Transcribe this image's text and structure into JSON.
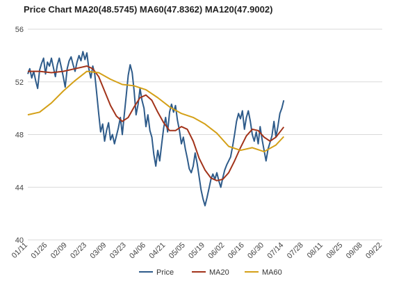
{
  "chart_data": {
    "type": "line",
    "title": "Price Chart MA20(48.5745) MA60(47.8362) MA120(47.9002)",
    "xlabel": "",
    "ylabel": "",
    "ylim": [
      40,
      56
    ],
    "yticks": [
      40,
      44,
      48,
      52,
      56
    ],
    "grid": true,
    "legend_position": "bottom",
    "x_labels": [
      "01/11",
      "01/26",
      "02/09",
      "02/23",
      "03/09",
      "03/23",
      "04/06",
      "04/21",
      "05/05",
      "05/19",
      "06/02",
      "06/16",
      "06/30",
      "07/14",
      "07/28",
      "08/11",
      "08/25",
      "09/08",
      "09/22"
    ],
    "series": [
      {
        "name": "Price",
        "color": "#2e5b8a",
        "points": [
          [
            0,
            52.6
          ],
          [
            0.1,
            53
          ],
          [
            0.2,
            52.3
          ],
          [
            0.3,
            52.8
          ],
          [
            0.4,
            52.1
          ],
          [
            0.5,
            51.5
          ],
          [
            0.6,
            52.9
          ],
          [
            0.7,
            53.4
          ],
          [
            0.8,
            53.8
          ],
          [
            0.9,
            52.6
          ],
          [
            1.0,
            53.5
          ],
          [
            1.1,
            53.2
          ],
          [
            1.2,
            53.8
          ],
          [
            1.3,
            53.1
          ],
          [
            1.4,
            52.4
          ],
          [
            1.5,
            53.3
          ],
          [
            1.6,
            53.8
          ],
          [
            1.7,
            53.1
          ],
          [
            1.8,
            52.4
          ],
          [
            1.9,
            51.6
          ],
          [
            2.0,
            53.0
          ],
          [
            2.1,
            53.6
          ],
          [
            2.2,
            53.9
          ],
          [
            2.3,
            53.3
          ],
          [
            2.4,
            52.8
          ],
          [
            2.5,
            53.5
          ],
          [
            2.6,
            54.0
          ],
          [
            2.7,
            53.6
          ],
          [
            2.8,
            54.3
          ],
          [
            2.9,
            53.7
          ],
          [
            3.0,
            54.2
          ],
          [
            3.1,
            53.0
          ],
          [
            3.2,
            52.3
          ],
          [
            3.3,
            53.2
          ],
          [
            3.4,
            52.6
          ],
          [
            3.5,
            51.1
          ],
          [
            3.6,
            49.6
          ],
          [
            3.7,
            48.2
          ],
          [
            3.8,
            48.8
          ],
          [
            3.9,
            47.5
          ],
          [
            4.0,
            48.3
          ],
          [
            4.1,
            48.9
          ],
          [
            4.2,
            47.6
          ],
          [
            4.3,
            48.0
          ],
          [
            4.4,
            47.3
          ],
          [
            4.5,
            47.9
          ],
          [
            4.6,
            48.5
          ],
          [
            4.7,
            49.3
          ],
          [
            4.8,
            48.0
          ],
          [
            4.9,
            49.5
          ],
          [
            5.0,
            51.0
          ],
          [
            5.1,
            52.5
          ],
          [
            5.2,
            53.3
          ],
          [
            5.3,
            52.7
          ],
          [
            5.4,
            51.3
          ],
          [
            5.5,
            49.5
          ],
          [
            5.6,
            50.3
          ],
          [
            5.7,
            51.5
          ],
          [
            5.8,
            50.6
          ],
          [
            5.9,
            50.0
          ],
          [
            6.0,
            48.6
          ],
          [
            6.1,
            49.5
          ],
          [
            6.2,
            48.3
          ],
          [
            6.3,
            47.8
          ],
          [
            6.4,
            46.5
          ],
          [
            6.5,
            45.6
          ],
          [
            6.6,
            46.8
          ],
          [
            6.7,
            46.0
          ],
          [
            6.8,
            47.3
          ],
          [
            6.9,
            48.5
          ],
          [
            7.0,
            49.3
          ],
          [
            7.1,
            48.2
          ],
          [
            7.2,
            49.7
          ],
          [
            7.3,
            50.3
          ],
          [
            7.4,
            49.7
          ],
          [
            7.5,
            50.2
          ],
          [
            7.6,
            49.1
          ],
          [
            7.7,
            48.3
          ],
          [
            7.8,
            47.3
          ],
          [
            7.9,
            47.8
          ],
          [
            8.0,
            46.9
          ],
          [
            8.1,
            46.2
          ],
          [
            8.2,
            45.4
          ],
          [
            8.3,
            45.1
          ],
          [
            8.4,
            45.6
          ],
          [
            8.5,
            46.6
          ],
          [
            8.6,
            45.8
          ],
          [
            8.7,
            44.8
          ],
          [
            8.8,
            43.8
          ],
          [
            8.9,
            43.1
          ],
          [
            9.0,
            42.6
          ],
          [
            9.1,
            43.2
          ],
          [
            9.2,
            43.9
          ],
          [
            9.3,
            44.6
          ],
          [
            9.4,
            45.0
          ],
          [
            9.5,
            44.6
          ],
          [
            9.6,
            45.1
          ],
          [
            9.7,
            44.5
          ],
          [
            9.8,
            44.0
          ],
          [
            9.9,
            44.7
          ],
          [
            10.0,
            45.3
          ],
          [
            10.1,
            45.7
          ],
          [
            10.2,
            46.0
          ],
          [
            10.3,
            46.3
          ],
          [
            10.4,
            47.1
          ],
          [
            10.5,
            48.0
          ],
          [
            10.6,
            49.0
          ],
          [
            10.7,
            49.6
          ],
          [
            10.8,
            49.2
          ],
          [
            10.9,
            49.8
          ],
          [
            11.0,
            48.4
          ],
          [
            11.1,
            49.3
          ],
          [
            11.2,
            49.8
          ],
          [
            11.3,
            49.0
          ],
          [
            11.4,
            48.0
          ],
          [
            11.5,
            47.5
          ],
          [
            11.6,
            48.2
          ],
          [
            11.7,
            47.3
          ],
          [
            11.8,
            48.6
          ],
          [
            11.9,
            47.6
          ],
          [
            12.0,
            46.8
          ],
          [
            12.1,
            46.0
          ],
          [
            12.2,
            46.9
          ],
          [
            12.3,
            47.4
          ],
          [
            12.4,
            47.9
          ],
          [
            12.5,
            49.0
          ],
          [
            12.6,
            47.8
          ],
          [
            12.7,
            48.6
          ],
          [
            12.8,
            49.6
          ],
          [
            12.9,
            50.0
          ],
          [
            13.0,
            50.6
          ]
        ]
      },
      {
        "name": "MA20",
        "color": "#a2331a",
        "points": [
          [
            0,
            52.8
          ],
          [
            0.6,
            52.8
          ],
          [
            1.2,
            52.7
          ],
          [
            1.8,
            52.8
          ],
          [
            2.4,
            53.0
          ],
          [
            3.0,
            53.2
          ],
          [
            3.3,
            53.0
          ],
          [
            3.6,
            52.4
          ],
          [
            3.9,
            51.3
          ],
          [
            4.2,
            50.2
          ],
          [
            4.5,
            49.4
          ],
          [
            4.8,
            49.0
          ],
          [
            5.1,
            49.3
          ],
          [
            5.4,
            50.1
          ],
          [
            5.7,
            50.8
          ],
          [
            6.0,
            51.0
          ],
          [
            6.3,
            50.6
          ],
          [
            6.6,
            49.7
          ],
          [
            6.9,
            48.9
          ],
          [
            7.2,
            48.3
          ],
          [
            7.5,
            48.3
          ],
          [
            7.8,
            48.6
          ],
          [
            8.1,
            48.4
          ],
          [
            8.4,
            47.5
          ],
          [
            8.7,
            46.2
          ],
          [
            9.0,
            45.3
          ],
          [
            9.3,
            44.7
          ],
          [
            9.6,
            44.5
          ],
          [
            9.9,
            44.6
          ],
          [
            10.2,
            45.1
          ],
          [
            10.5,
            46.0
          ],
          [
            10.8,
            47.0
          ],
          [
            11.1,
            47.9
          ],
          [
            11.4,
            48.4
          ],
          [
            11.7,
            48.3
          ],
          [
            12.0,
            47.8
          ],
          [
            12.3,
            47.5
          ],
          [
            12.6,
            47.8
          ],
          [
            13.0,
            48.57
          ]
        ]
      },
      {
        "name": "MA60",
        "color": "#d4a017",
        "points": [
          [
            0,
            49.5
          ],
          [
            0.6,
            49.7
          ],
          [
            1.2,
            50.4
          ],
          [
            1.8,
            51.3
          ],
          [
            2.4,
            52.1
          ],
          [
            3.0,
            52.8
          ],
          [
            3.6,
            52.7
          ],
          [
            4.2,
            52.2
          ],
          [
            4.8,
            51.8
          ],
          [
            5.4,
            51.7
          ],
          [
            6.0,
            51.4
          ],
          [
            6.6,
            50.8
          ],
          [
            7.2,
            50.1
          ],
          [
            7.8,
            49.6
          ],
          [
            8.4,
            49.3
          ],
          [
            9.0,
            48.8
          ],
          [
            9.6,
            48.1
          ],
          [
            10.2,
            47.1
          ],
          [
            10.8,
            46.8
          ],
          [
            11.4,
            47.0
          ],
          [
            12.0,
            46.7
          ],
          [
            12.6,
            47.2
          ],
          [
            13.0,
            47.84
          ]
        ]
      }
    ]
  }
}
